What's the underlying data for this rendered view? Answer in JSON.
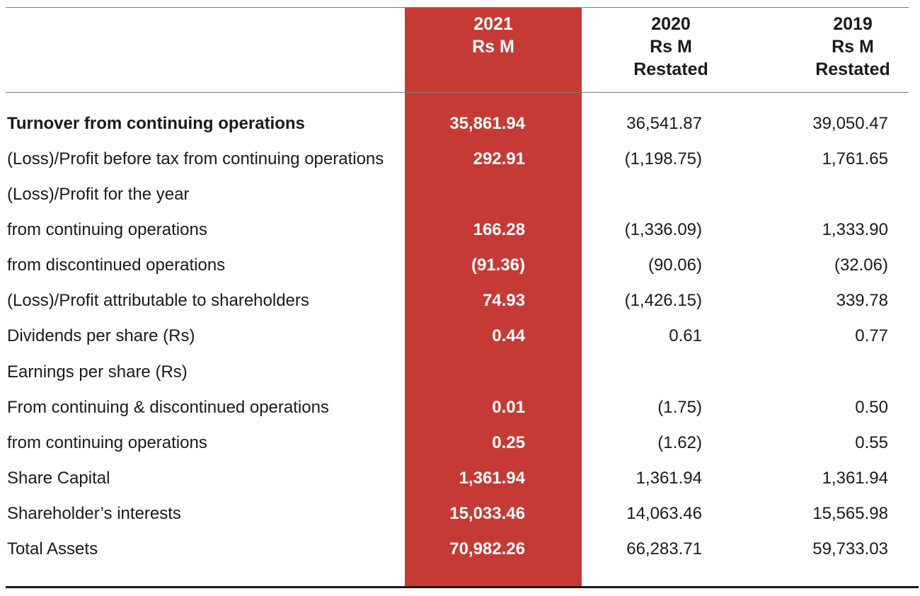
{
  "headers": {
    "col2021": {
      "year": "2021",
      "unit": "Rs M",
      "note": ""
    },
    "col2020": {
      "year": "2020",
      "unit": "Rs M",
      "note": "Restated"
    },
    "col2019": {
      "year": "2019",
      "unit": "Rs M",
      "note": "Restated"
    }
  },
  "rows": [
    {
      "label": "Turnover from continuing operations",
      "bold": true,
      "v2021": "35,861.94",
      "v2020": "36,541.87",
      "v2019": "39,050.47"
    },
    {
      "label": "(Loss)/Profit before tax from continuing operations",
      "bold": false,
      "v2021": "292.91",
      "v2020": "(1,198.75)",
      "v2019": "1,761.65"
    },
    {
      "label": "(Loss)/Profit for the year",
      "bold": false,
      "v2021": "",
      "v2020": "",
      "v2019": ""
    },
    {
      "label": "from continuing operations",
      "bold": false,
      "v2021": "166.28",
      "v2020": "(1,336.09)",
      "v2019": "1,333.90"
    },
    {
      "label": "from discontinued operations",
      "bold": false,
      "v2021": "(91.36)",
      "v2020": "(90.06)",
      "v2019": "(32.06)"
    },
    {
      "label": "(Loss)/Profit attributable to shareholders",
      "bold": false,
      "v2021": "74.93",
      "v2020": "(1,426.15)",
      "v2019": "339.78"
    },
    {
      "label": "Dividends per share (Rs)",
      "bold": false,
      "v2021": "0.44",
      "v2020": "0.61",
      "v2019": "0.77"
    },
    {
      "label": "Earnings per share (Rs)",
      "bold": false,
      "v2021": "",
      "v2020": "",
      "v2019": ""
    },
    {
      "label": "From continuing & discontinued operations",
      "bold": false,
      "v2021": "0.01",
      "v2020": "(1.75)",
      "v2019": "0.50"
    },
    {
      "label": "from continuing operations",
      "bold": false,
      "v2021": "0.25",
      "v2020": "(1.62)",
      "v2019": "0.55"
    },
    {
      "label": "Share Capital",
      "bold": false,
      "v2021": "1,361.94",
      "v2020": "1,361.94",
      "v2019": "1,361.94"
    },
    {
      "label": "Shareholder’s interests",
      "bold": false,
      "v2021": "15,033.46",
      "v2020": "14,063.46",
      "v2019": "15,565.98"
    },
    {
      "label": "Total Assets",
      "bold": false,
      "v2021": "70,982.26",
      "v2020": "66,283.71",
      "v2019": "59,733.03"
    }
  ],
  "colors": {
    "highlight": "#c63a35",
    "text": "#1a1a1a",
    "rule": "#7a7a7a"
  }
}
